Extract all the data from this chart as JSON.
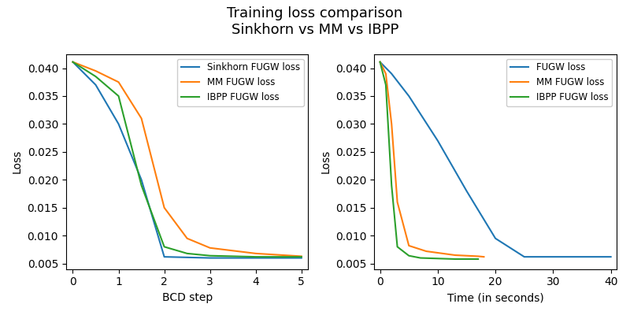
{
  "title_line1": "Training loss comparison",
  "title_line2": "Sinkhorn vs MM vs IBPP",
  "left": {
    "xlabel": "BCD step",
    "ylabel": "Loss",
    "xlim": [
      -0.15,
      5.15
    ],
    "ylim": [
      0.004,
      0.0425
    ],
    "yticks": [
      0.005,
      0.01,
      0.015,
      0.02,
      0.025,
      0.03,
      0.035,
      0.04
    ],
    "xticks": [
      0,
      1,
      2,
      3,
      4,
      5
    ],
    "sinkhorn": {
      "x": [
        0,
        0.5,
        1,
        1.5,
        2,
        3,
        4,
        5
      ],
      "y": [
        0.0411,
        0.037,
        0.03,
        0.02,
        0.0062,
        0.006,
        0.006,
        0.006
      ],
      "label": "Sinkhorn FUGW loss",
      "color": "#1f77b4"
    },
    "mm": {
      "x": [
        0,
        0.5,
        1,
        1.5,
        2,
        2.5,
        3,
        4,
        5
      ],
      "y": [
        0.0411,
        0.0395,
        0.0375,
        0.031,
        0.015,
        0.0095,
        0.0078,
        0.0068,
        0.0063
      ],
      "label": "MM FUGW loss",
      "color": "#ff7f0e"
    },
    "ibpp": {
      "x": [
        0,
        0.5,
        1,
        1.5,
        2,
        2.5,
        3,
        4,
        5
      ],
      "y": [
        0.0411,
        0.0385,
        0.035,
        0.019,
        0.008,
        0.0068,
        0.0064,
        0.0062,
        0.0062
      ],
      "label": "IBPP FUGW loss",
      "color": "#2ca02c"
    }
  },
  "right": {
    "xlabel": "Time (in seconds)",
    "ylabel": "Loss",
    "xlim": [
      -1.0,
      41
    ],
    "ylim": [
      0.004,
      0.0425
    ],
    "yticks": [
      0.005,
      0.01,
      0.015,
      0.02,
      0.025,
      0.03,
      0.035,
      0.04
    ],
    "xticks": [
      0,
      10,
      20,
      30,
      40
    ],
    "sinkhorn": {
      "x": [
        0,
        2,
        5,
        10,
        15,
        20,
        25,
        40
      ],
      "y": [
        0.0411,
        0.039,
        0.035,
        0.027,
        0.018,
        0.0095,
        0.0062,
        0.0062
      ],
      "label": "FUGW loss",
      "color": "#1f77b4"
    },
    "mm": {
      "x": [
        0,
        1,
        2,
        3,
        5,
        8,
        13,
        17,
        18
      ],
      "y": [
        0.0411,
        0.039,
        0.03,
        0.016,
        0.0082,
        0.0072,
        0.0065,
        0.0063,
        0.0062
      ],
      "label": "MM FUGW loss",
      "color": "#ff7f0e"
    },
    "ibpp": {
      "x": [
        0,
        1,
        2,
        3,
        5,
        7,
        13,
        17
      ],
      "y": [
        0.0411,
        0.037,
        0.019,
        0.008,
        0.0064,
        0.006,
        0.0058,
        0.0058
      ],
      "label": "IBPP FUGW loss",
      "color": "#2ca02c"
    }
  },
  "figsize": [
    8.0,
    4.0
  ],
  "dpi": 100,
  "title_fontsize": 13,
  "legend_fontsize": 8.5,
  "background_color": "#ffffff"
}
